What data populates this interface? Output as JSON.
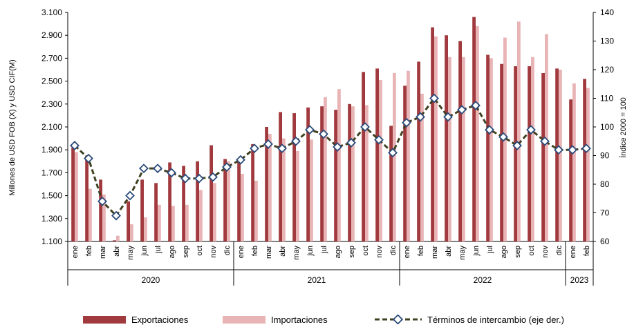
{
  "chart_data": {
    "type": "bar",
    "title": "",
    "ylabel_left": "Millones de USD FOB (X) y USD CIF(M)",
    "ylabel_right": "Índice 2000 = 100",
    "ylim_left": [
      1100,
      3100
    ],
    "yticks_left": [
      "1.100",
      "1.300",
      "1.500",
      "1.700",
      "1.900",
      "2.100",
      "2.300",
      "2.500",
      "2.700",
      "2.900",
      "3.100"
    ],
    "ylim_right": [
      60,
      140
    ],
    "yticks_right": [
      "60",
      "70",
      "80",
      "90",
      "100",
      "110",
      "120",
      "130",
      "140"
    ],
    "categories": [
      "ene",
      "feb",
      "mar",
      "abr",
      "may",
      "jun",
      "jul",
      "ago",
      "sep",
      "oct",
      "nov",
      "dic",
      "ene",
      "feb",
      "mar",
      "abr",
      "may",
      "jun",
      "jul",
      "ago",
      "sep",
      "oct",
      "nov",
      "dic",
      "ene",
      "feb",
      "mar",
      "abr",
      "may",
      "jun",
      "jul",
      "ago",
      "sep",
      "oct",
      "nov",
      "dic",
      "ene",
      "feb"
    ],
    "years": [
      {
        "label": "2020",
        "count": 12
      },
      {
        "label": "2021",
        "count": 12
      },
      {
        "label": "2022",
        "count": 12
      },
      {
        "label": "2023",
        "count": 2
      }
    ],
    "series": [
      {
        "name": "Exportaciones",
        "axis": "left",
        "kind": "bar",
        "color": "#a13a3e",
        "values": [
          1920,
          1850,
          1640,
          1110,
          1450,
          1640,
          1610,
          1790,
          1760,
          1800,
          1940,
          1820,
          1800,
          1950,
          2100,
          2230,
          2220,
          2270,
          2280,
          2250,
          2300,
          2580,
          2610,
          2110,
          2460,
          2670,
          2970,
          2900,
          2850,
          3060,
          2730,
          2650,
          2630,
          2630,
          2570,
          2610,
          2340,
          2520
        ]
      },
      {
        "name": "Importaciones",
        "axis": "left",
        "kind": "bar",
        "color": "#e8b4b6",
        "values": [
          1880,
          1560,
          1510,
          1150,
          1250,
          1310,
          1420,
          1410,
          1420,
          1550,
          1610,
          1800,
          1690,
          1630,
          2040,
          2000,
          1890,
          1990,
          2360,
          2430,
          2280,
          2290,
          2510,
          2570,
          2590,
          2390,
          2890,
          2710,
          2710,
          2980,
          2700,
          2880,
          3020,
          2710,
          2910,
          2600,
          2480,
          2440
        ]
      },
      {
        "name": "Términos de intercambio (eje der.)",
        "axis": "right",
        "kind": "line",
        "color": "#404022",
        "marker_color": "#2a4a7a",
        "values": [
          93.5,
          89,
          74,
          69,
          76,
          85.5,
          85.5,
          84,
          82,
          82,
          82.5,
          86,
          88.5,
          92.5,
          94,
          92.5,
          95,
          99,
          97.5,
          93,
          94.5,
          100,
          95.5,
          91,
          101.5,
          103.5,
          110,
          103.5,
          106,
          107.5,
          99,
          96.5,
          93.5,
          99,
          95,
          92,
          92,
          92.5
        ]
      }
    ],
    "legend_position": "bottom",
    "grid": false
  }
}
